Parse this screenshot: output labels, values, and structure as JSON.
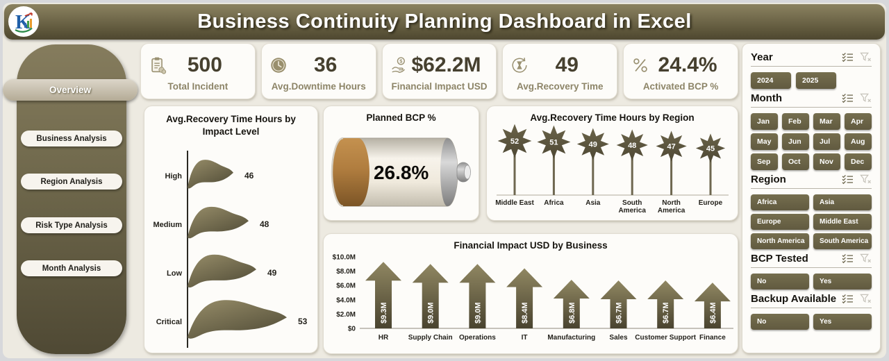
{
  "header": {
    "title": "Business Continuity Planning Dashboard in Excel"
  },
  "sidebar": {
    "items": [
      {
        "label": "Overview",
        "active": true
      },
      {
        "label": "Business Analysis",
        "active": false
      },
      {
        "label": "Region Analysis",
        "active": false
      },
      {
        "label": "Risk Type Analysis",
        "active": false
      },
      {
        "label": "Month Analysis",
        "active": false
      }
    ]
  },
  "kpis": [
    {
      "icon": "clipboard-icon",
      "value": "500",
      "label": "Total Incident"
    },
    {
      "icon": "clock-icon",
      "value": "36",
      "label": "Avg.Downtime Hours"
    },
    {
      "icon": "money-hand-icon",
      "value": "$62.2M",
      "label": "Financial Impact USD"
    },
    {
      "icon": "hourglass-icon",
      "value": "49",
      "label": "Avg.Recovery Time"
    },
    {
      "icon": "percent-icon",
      "value": "24.4%",
      "label": "Activated BCP %"
    }
  ],
  "chart_data": [
    {
      "type": "bar",
      "style": "flag",
      "orientation": "horizontal",
      "title": "Avg.Recovery Time Hours by Impact Level",
      "categories": [
        "High",
        "Medium",
        "Low",
        "Critical"
      ],
      "values": [
        46,
        48,
        49,
        53
      ],
      "grid": false
    },
    {
      "type": "gauge",
      "style": "battery",
      "title": "Planned BCP %",
      "value": 26.8,
      "max": 100,
      "value_label": "26.8%"
    },
    {
      "type": "bar",
      "style": "star",
      "title": "Avg.Recovery Time Hours by Region",
      "categories": [
        "Middle East",
        "Africa",
        "Asia",
        "South America",
        "North America",
        "Europe"
      ],
      "values": [
        52,
        51,
        49,
        48,
        47,
        45
      ],
      "grid": false
    },
    {
      "type": "bar",
      "style": "arrow",
      "title": "Financial Impact USD by Business",
      "categories": [
        "HR",
        "Supply Chain",
        "Operations",
        "IT",
        "Manufacturing",
        "Sales",
        "Customer Support",
        "Finance"
      ],
      "values": [
        9.3,
        9.0,
        9.0,
        8.4,
        6.8,
        6.7,
        6.7,
        6.4
      ],
      "value_labels": [
        "$9.3M",
        "$9.0M",
        "$9.0M",
        "$8.4M",
        "$6.8M",
        "$6.7M",
        "$6.7M",
        "$6.4M"
      ],
      "y_ticks": [
        "$0",
        "$2.0M",
        "$4.0M",
        "$6.0M",
        "$8.0M",
        "$10.0M"
      ],
      "ylim": [
        0,
        10
      ],
      "grid": false
    }
  ],
  "slicers": [
    {
      "title": "Year",
      "options": [
        "2024",
        "2025"
      ]
    },
    {
      "title": "Month",
      "options": [
        "Jan",
        "Feb",
        "Mar",
        "Apr",
        "May",
        "Jun",
        "Jul",
        "Aug",
        "Sep",
        "Oct",
        "Nov",
        "Dec"
      ]
    },
    {
      "title": "Region",
      "options": [
        "Africa",
        "Asia",
        "Europe",
        "Middle East",
        "North America",
        "South America"
      ]
    },
    {
      "title": "BCP Tested",
      "options": [
        "No",
        "Yes"
      ]
    },
    {
      "title": "Backup Available",
      "options": [
        "No",
        "Yes"
      ]
    }
  ],
  "colors": {
    "accent_olive": "#6b6449",
    "titlebar_top": "#8b8260",
    "titlebar_bottom": "#4e4730",
    "kpi_value": "#46402f",
    "kpi_label": "#8d8568",
    "battery_copper": "#a4733a",
    "chart_shape": "#6a6248",
    "page_bg": "#edeae1",
    "card_bg": "#fdfcf9"
  }
}
